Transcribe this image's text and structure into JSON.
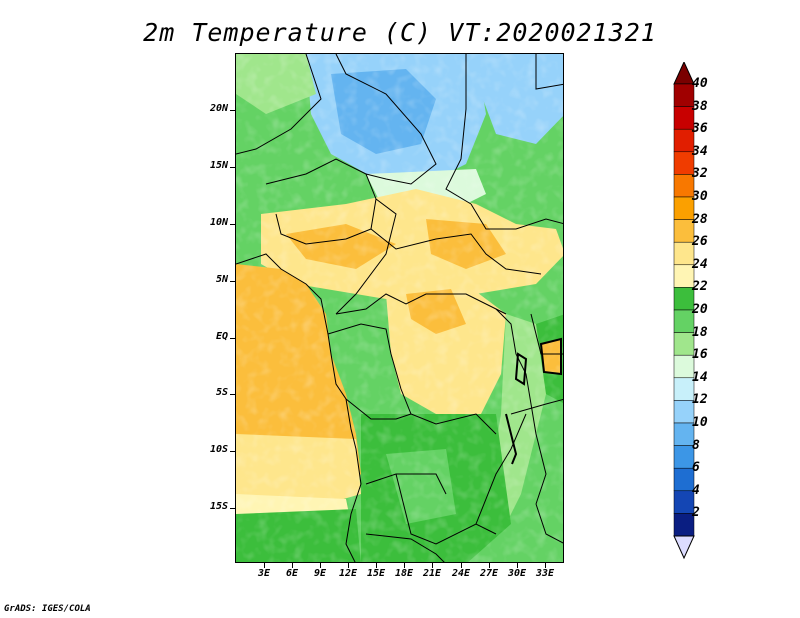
{
  "title": "2m Temperature (C) VT:2020021321",
  "credit": "GrADS: IGES/COLA",
  "map": {
    "lat_labels": [
      "20N",
      "15N",
      "10N",
      "5N",
      "EQ",
      "5S",
      "10S",
      "15S"
    ],
    "lon_labels": [
      "3E",
      "6E",
      "9E",
      "12E",
      "15E",
      "18E",
      "21E",
      "24E",
      "27E",
      "30E",
      "33E"
    ]
  },
  "colorbar": {
    "labels": [
      "40",
      "38",
      "36",
      "34",
      "32",
      "30",
      "28",
      "26",
      "24",
      "22",
      "20",
      "18",
      "16",
      "14",
      "12",
      "10",
      "8",
      "6",
      "4",
      "2"
    ],
    "colors": [
      "#a00000",
      "#c80000",
      "#e11e00",
      "#f03c00",
      "#f87800",
      "#fba000",
      "#fbbe3c",
      "#fee68c",
      "#fff5b4",
      "#3cbe3c",
      "#64d264",
      "#a0e68c",
      "#dcfadc",
      "#c8f0fa",
      "#96d2fa",
      "#64b4f0",
      "#3c96e6",
      "#1e6ed2",
      "#1446b4",
      "#0a1e82"
    ]
  }
}
